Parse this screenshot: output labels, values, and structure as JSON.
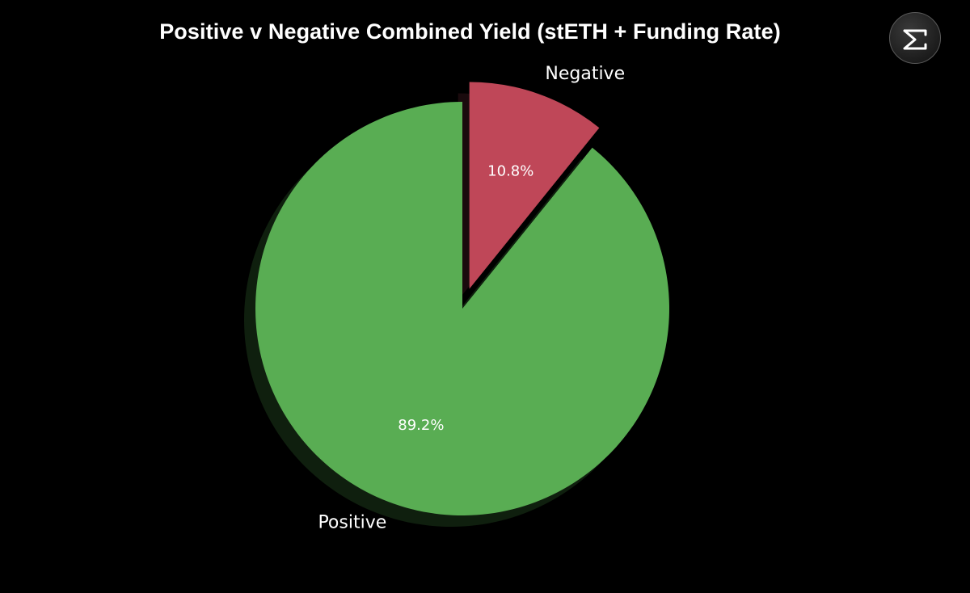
{
  "chart_data": {
    "type": "pie",
    "title": "Positive v Negative Combined Yield (stETH + Funding Rate)",
    "slices": [
      {
        "label": "Positive",
        "value": 89.2,
        "pct_label": "89.2%",
        "color": "#59ad53",
        "exploded": false
      },
      {
        "label": "Negative",
        "value": 10.8,
        "pct_label": "10.8%",
        "color": "#bf4758",
        "exploded": true
      }
    ],
    "start_angle": "top, clockwise: Negative first",
    "shadow": true,
    "background": "#000000"
  },
  "brand": {
    "logo_icon": "sigma-logo-icon"
  }
}
